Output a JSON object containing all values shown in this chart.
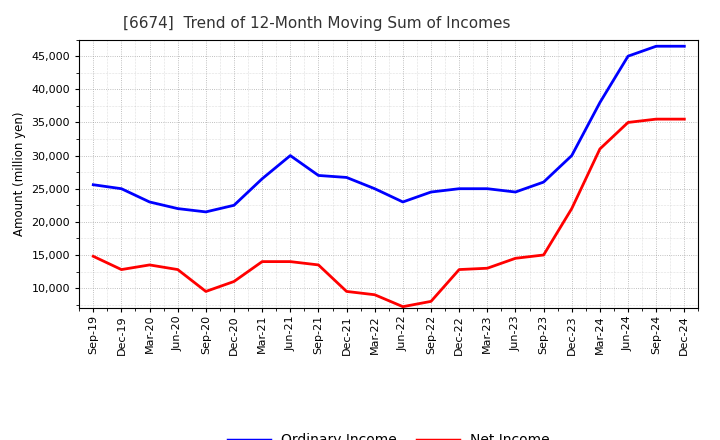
{
  "title": "[6674]  Trend of 12-Month Moving Sum of Incomes",
  "ylabel": "Amount (million yen)",
  "xlabel": "",
  "background_color": "#ffffff",
  "plot_bg_color": "#ffffff",
  "grid_color": "#888888",
  "x_labels": [
    "Sep-19",
    "Dec-19",
    "Mar-20",
    "Jun-20",
    "Sep-20",
    "Dec-20",
    "Mar-21",
    "Jun-21",
    "Sep-21",
    "Dec-21",
    "Mar-22",
    "Jun-22",
    "Sep-22",
    "Dec-22",
    "Mar-23",
    "Jun-23",
    "Sep-23",
    "Dec-23",
    "Mar-24",
    "Jun-24",
    "Sep-24",
    "Dec-24"
  ],
  "ordinary_income": [
    25600,
    25000,
    23000,
    22000,
    21500,
    22500,
    26500,
    30000,
    27000,
    26700,
    25000,
    23000,
    24500,
    25000,
    25000,
    24500,
    26000,
    30000,
    38000,
    45000,
    46500,
    46500
  ],
  "net_income": [
    14800,
    12800,
    13500,
    12800,
    9500,
    11000,
    14000,
    14000,
    13500,
    9500,
    9000,
    7200,
    8000,
    12800,
    13000,
    14500,
    15000,
    22000,
    31000,
    35000,
    35500,
    35500
  ],
  "ordinary_color": "#0000ff",
  "net_color": "#ff0000",
  "ylim": [
    7000,
    47500
  ],
  "yticks": [
    10000,
    15000,
    20000,
    25000,
    30000,
    35000,
    40000,
    45000
  ],
  "line_width": 2.0,
  "title_fontsize": 11,
  "title_color": "#333333",
  "tick_label_fontsize": 8,
  "ylabel_fontsize": 8.5,
  "legend_labels": [
    "Ordinary Income",
    "Net Income"
  ],
  "legend_fontsize": 10
}
